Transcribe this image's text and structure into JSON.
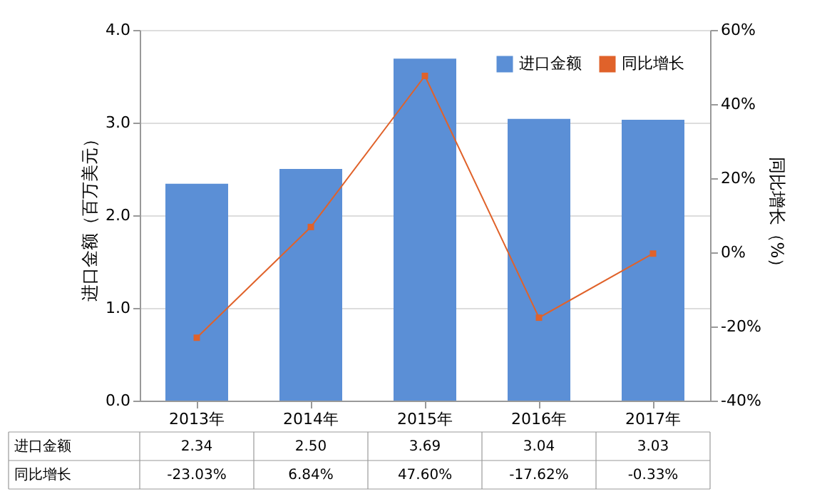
{
  "chart_data": {
    "type": "bar",
    "categories": [
      "2013年",
      "2014年",
      "2015年",
      "2016年",
      "2017年"
    ],
    "series": [
      {
        "name": "进口金额",
        "color": "#5b8fd6",
        "values": [
          2.34,
          2.5,
          3.69,
          3.04,
          3.03
        ],
        "value_labels": [
          "2.34",
          "2.50",
          "3.69",
          "3.04",
          "3.03"
        ]
      },
      {
        "name": "同比增长",
        "type": "line",
        "axis": "y2",
        "color": "#e0622a",
        "values": [
          -23.03,
          6.84,
          47.6,
          -17.62,
          -0.33
        ],
        "value_labels": [
          "-23.03%",
          "6.84%",
          "47.60%",
          "-17.62%",
          "-0.33%"
        ]
      }
    ],
    "ylabel": "进口金额（百万美元）",
    "y2label": "同比增长（%）",
    "ylim": [
      0,
      4
    ],
    "yticks": [
      {
        "value": 0,
        "label": "0.0"
      },
      {
        "value": 1,
        "label": "1.0"
      },
      {
        "value": 2,
        "label": "2.0"
      },
      {
        "value": 3,
        "label": "3.0"
      },
      {
        "value": 4,
        "label": "4.0"
      }
    ],
    "y2lim": [
      -40,
      60
    ],
    "y2ticks": [
      {
        "value": -40,
        "label": "-40%"
      },
      {
        "value": -20,
        "label": "-20%"
      },
      {
        "value": 0,
        "label": "0%"
      },
      {
        "value": 20,
        "label": "20%"
      },
      {
        "value": 40,
        "label": "40%"
      },
      {
        "value": 60,
        "label": "60%"
      }
    ],
    "grid": "y",
    "legend": "top right",
    "marker": "square"
  }
}
